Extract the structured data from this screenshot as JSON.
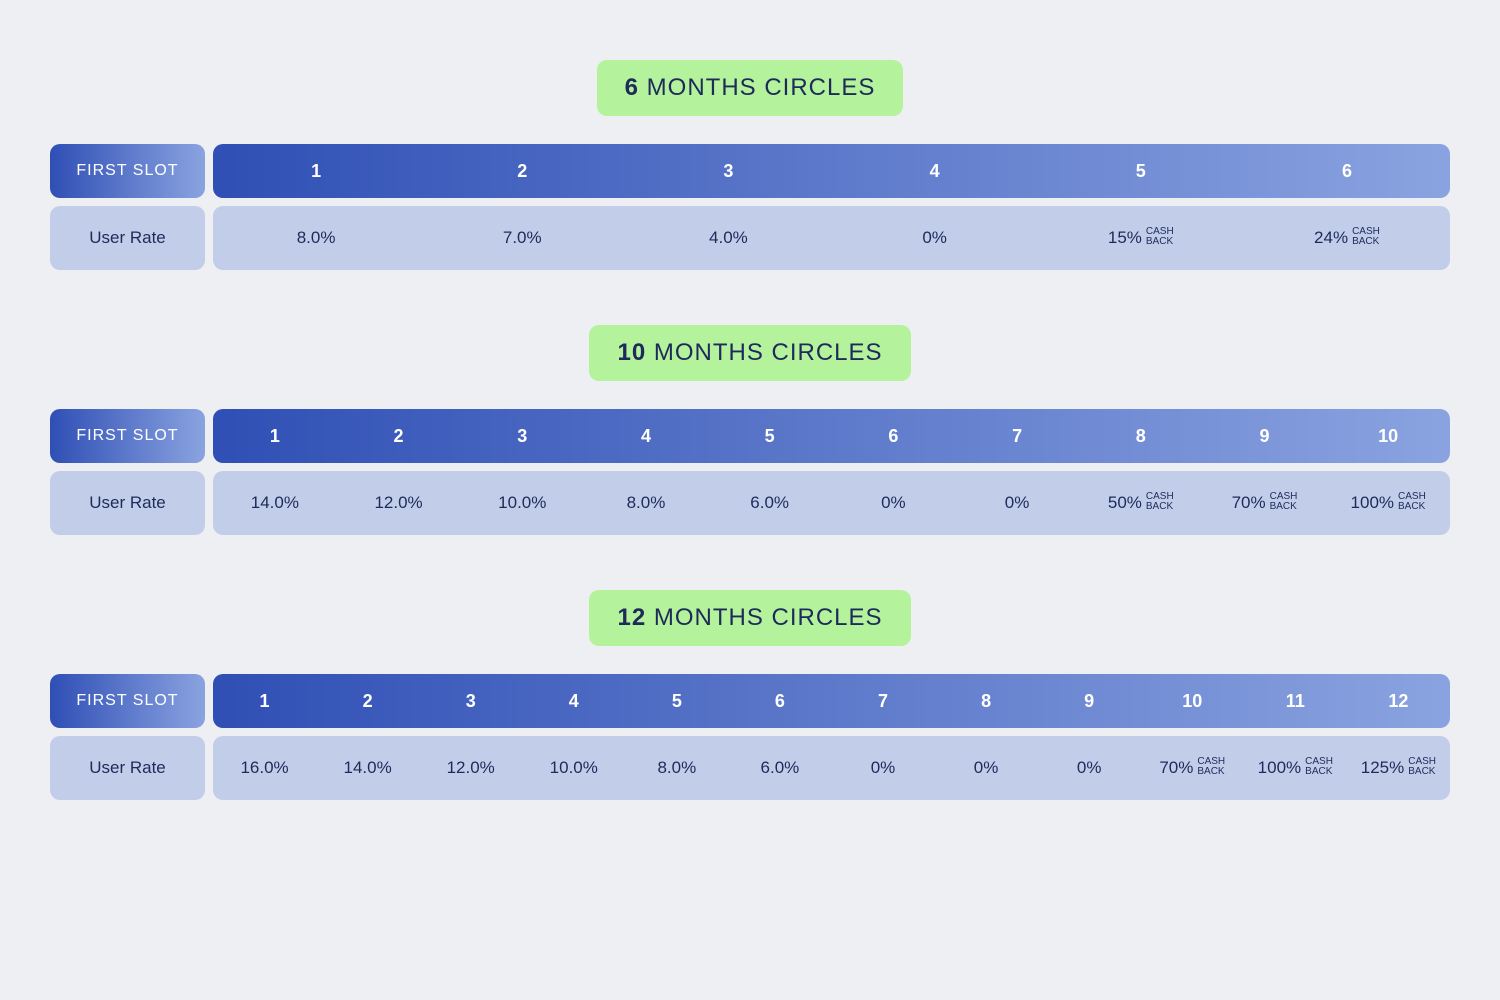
{
  "colors": {
    "page_bg": "#edeff2",
    "pill_bg": "#b4f29b",
    "text_dark": "#1e2a5a",
    "header_grad_from": "#2f4fb5",
    "header_grad_to": "#8aa3e0",
    "body_bg": "#c2cdea"
  },
  "labels": {
    "first_slot": "FIRST SLOT",
    "user_rate": "User Rate",
    "months_suffix": "MONTHS CIRCLES",
    "cash": "CASH",
    "back": "BACK"
  },
  "sections": [
    {
      "months": "6",
      "slots": [
        "1",
        "2",
        "3",
        "4",
        "5",
        "6"
      ],
      "rates": [
        {
          "v": "8.0%",
          "cb": false
        },
        {
          "v": "7.0%",
          "cb": false
        },
        {
          "v": "4.0%",
          "cb": false
        },
        {
          "v": "0%",
          "cb": false
        },
        {
          "v": "15%",
          "cb": true
        },
        {
          "v": "24%",
          "cb": true
        }
      ]
    },
    {
      "months": "10",
      "slots": [
        "1",
        "2",
        "3",
        "4",
        "5",
        "6",
        "7",
        "8",
        "9",
        "10"
      ],
      "rates": [
        {
          "v": "14.0%",
          "cb": false
        },
        {
          "v": "12.0%",
          "cb": false
        },
        {
          "v": "10.0%",
          "cb": false
        },
        {
          "v": "8.0%",
          "cb": false
        },
        {
          "v": "6.0%",
          "cb": false
        },
        {
          "v": "0%",
          "cb": false
        },
        {
          "v": "0%",
          "cb": false
        },
        {
          "v": "50%",
          "cb": true
        },
        {
          "v": "70%",
          "cb": true
        },
        {
          "v": "100%",
          "cb": true
        }
      ]
    },
    {
      "months": "12",
      "slots": [
        "1",
        "2",
        "3",
        "4",
        "5",
        "6",
        "7",
        "8",
        "9",
        "10",
        "11",
        "12"
      ],
      "rates": [
        {
          "v": "16.0%",
          "cb": false
        },
        {
          "v": "14.0%",
          "cb": false
        },
        {
          "v": "12.0%",
          "cb": false
        },
        {
          "v": "10.0%",
          "cb": false
        },
        {
          "v": "8.0%",
          "cb": false
        },
        {
          "v": "6.0%",
          "cb": false
        },
        {
          "v": "0%",
          "cb": false
        },
        {
          "v": "0%",
          "cb": false
        },
        {
          "v": "0%",
          "cb": false
        },
        {
          "v": "70%",
          "cb": true
        },
        {
          "v": "100%",
          "cb": true
        },
        {
          "v": "125%",
          "cb": true
        }
      ]
    }
  ]
}
